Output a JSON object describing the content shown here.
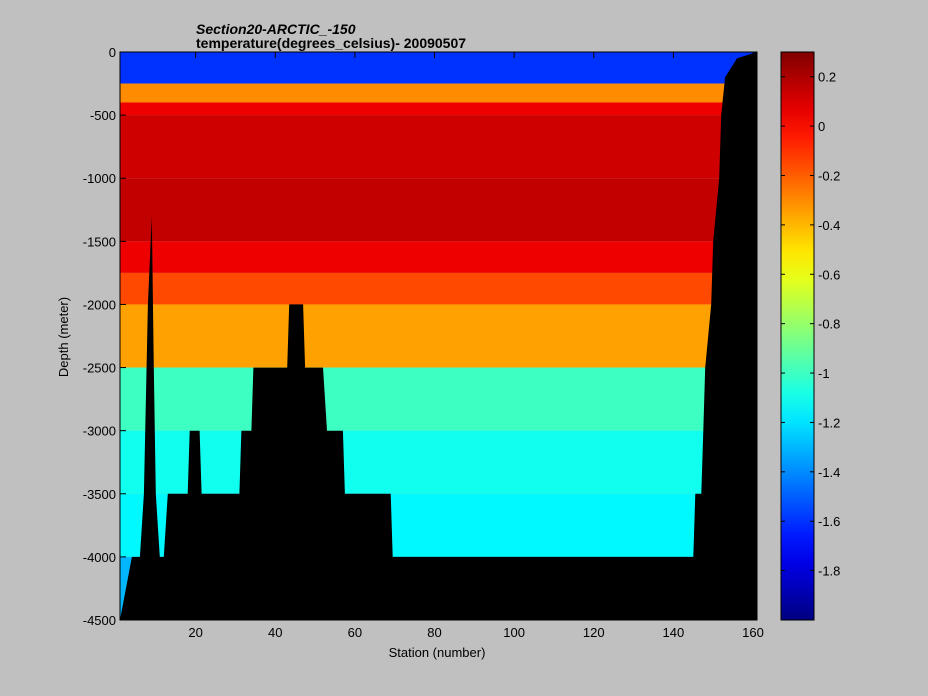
{
  "chart_data": {
    "type": "heatmap",
    "title": "Section20-ARCTIC_-150",
    "subtitle": "temperature(degrees_celsius)- 20090507",
    "xlabel": "Station (number)",
    "ylabel": "Depth (meter)",
    "xlim": [
      1,
      161
    ],
    "ylim": [
      -4500,
      0
    ],
    "x_ticks": [
      "20",
      "40",
      "60",
      "80",
      "100",
      "120",
      "140",
      "160"
    ],
    "y_ticks": [
      "0",
      "-500",
      "-1000",
      "-1500",
      "-2000",
      "-2500",
      "-3000",
      "-3500",
      "-4000",
      "-4500"
    ],
    "colorbar": {
      "range": [
        -2.0,
        0.3
      ],
      "ticks": [
        "0.2",
        "0",
        "-0.2",
        "-0.4",
        "-0.6",
        "-0.8",
        "-1",
        "-1.2",
        "-1.4",
        "-1.6",
        "-1.8"
      ]
    },
    "depth_layers": [
      {
        "top": 0,
        "bottom": -250,
        "temperature": -1.6
      },
      {
        "top": -250,
        "bottom": -400,
        "temperature": -0.3
      },
      {
        "top": -400,
        "bottom": -500,
        "temperature": 0.05
      },
      {
        "top": -500,
        "bottom": -1000,
        "temperature": 0.12
      },
      {
        "top": -1000,
        "bottom": -1500,
        "temperature": 0.15
      },
      {
        "top": -1500,
        "bottom": -1750,
        "temperature": 0.05
      },
      {
        "top": -1750,
        "bottom": -2000,
        "temperature": -0.15
      },
      {
        "top": -2000,
        "bottom": -2500,
        "temperature": -0.35
      },
      {
        "top": -2500,
        "bottom": -3000,
        "temperature": -1.0
      },
      {
        "top": -3000,
        "bottom": -3500,
        "temperature": -1.1
      },
      {
        "top": -3500,
        "bottom": -4000,
        "temperature": -1.15
      },
      {
        "top": -4000,
        "bottom": -4500,
        "temperature": -1.3
      }
    ],
    "bottom_depth_by_station": [
      [
        1,
        -4500
      ],
      [
        4,
        -4000
      ],
      [
        6,
        -4000
      ],
      [
        7,
        -3500
      ],
      [
        8,
        -2000
      ],
      [
        9,
        -1300
      ],
      [
        9.5,
        -2500
      ],
      [
        10,
        -3500
      ],
      [
        11,
        -4000
      ],
      [
        12,
        -4000
      ],
      [
        13,
        -3500
      ],
      [
        18,
        -3500
      ],
      [
        18.5,
        -3000
      ],
      [
        21,
        -3000
      ],
      [
        21.5,
        -3500
      ],
      [
        31,
        -3500
      ],
      [
        31.5,
        -3000
      ],
      [
        34,
        -3000
      ],
      [
        34.5,
        -2500
      ],
      [
        43,
        -2500
      ],
      [
        43.5,
        -2000
      ],
      [
        47,
        -2000
      ],
      [
        47.5,
        -2500
      ],
      [
        52,
        -2500
      ],
      [
        53,
        -3000
      ],
      [
        57,
        -3000
      ],
      [
        57.5,
        -3500
      ],
      [
        69,
        -3500
      ],
      [
        69.5,
        -4000
      ],
      [
        145,
        -4000
      ],
      [
        145.5,
        -3500
      ],
      [
        147,
        -3500
      ],
      [
        147.5,
        -3000
      ],
      [
        148,
        -2500
      ],
      [
        149.5,
        -2000
      ],
      [
        150,
        -1500
      ],
      [
        151.5,
        -1000
      ],
      [
        152,
        -500
      ],
      [
        153,
        -200
      ],
      [
        156,
        -50
      ],
      [
        161,
        0
      ]
    ]
  }
}
